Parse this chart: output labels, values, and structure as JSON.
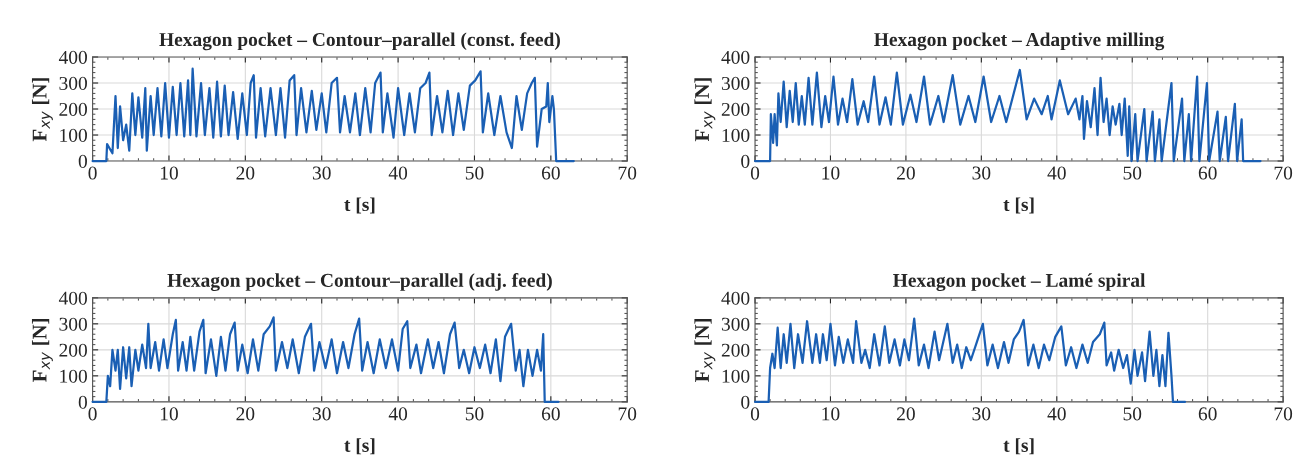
{
  "chart_data": [
    {
      "type": "line",
      "title": "Hexagon pocket – Contour–parallel (const. feed)",
      "xlabel": "t [s]",
      "ylabel": "F$_{xy}$ [N]",
      "xlim": [
        0,
        70
      ],
      "xticks": [
        0,
        10,
        20,
        30,
        40,
        50,
        60,
        70
      ],
      "ylim": [
        0,
        400
      ],
      "yticks": [
        0,
        100,
        200,
        300,
        400
      ],
      "grid": true,
      "legend": false,
      "series": [
        {
          "color": "#1a5fb4",
          "x": [
            0,
            1.8,
            1.9,
            2.6,
            3.0,
            3.3,
            3.6,
            4.0,
            4.4,
            4.8,
            5.2,
            5.6,
            6.0,
            6.5,
            6.9,
            7.1,
            7.6,
            8.0,
            8.5,
            9.0,
            9.5,
            10.0,
            10.5,
            11.0,
            11.5,
            12.0,
            12.5,
            12.8,
            13.1,
            13.6,
            14.2,
            14.7,
            15.3,
            15.8,
            16.3,
            16.8,
            17.3,
            17.8,
            18.4,
            19.0,
            19.6,
            20.2,
            20.7,
            21.1,
            21.4,
            22.0,
            22.6,
            23.3,
            24.0,
            24.6,
            25.2,
            25.8,
            26.4,
            26.7,
            27.3,
            28.0,
            28.7,
            29.3,
            30.0,
            30.6,
            31.3,
            32.0,
            32.4,
            33.0,
            33.7,
            34.4,
            35.0,
            35.7,
            36.4,
            37.0,
            37.7,
            38.0,
            38.6,
            39.4,
            40.0,
            40.8,
            41.5,
            42.2,
            42.9,
            43.6,
            44.1,
            44.4,
            45.1,
            45.8,
            46.5,
            47.2,
            47.9,
            48.6,
            49.4,
            50.1,
            50.8,
            51.1,
            51.8,
            52.6,
            53.4,
            54.2,
            54.9,
            55.5,
            56.2,
            56.9,
            57.5,
            57.9,
            58.2,
            58.8,
            59.4,
            59.6,
            59.8,
            60.2,
            60.4,
            60.7,
            63
          ],
          "values": [
            0,
            0,
            65,
            30,
            250,
            50,
            210,
            80,
            140,
            40,
            260,
            100,
            245,
            90,
            280,
            40,
            250,
            100,
            280,
            95,
            300,
            90,
            285,
            100,
            300,
            95,
            310,
            100,
            355,
            95,
            300,
            100,
            280,
            90,
            305,
            95,
            290,
            100,
            265,
            85,
            260,
            100,
            300,
            330,
            90,
            280,
            95,
            280,
            100,
            280,
            90,
            310,
            330,
            100,
            280,
            110,
            270,
            120,
            260,
            110,
            300,
            320,
            110,
            250,
            110,
            260,
            100,
            280,
            110,
            300,
            340,
            110,
            260,
            90,
            280,
            100,
            260,
            110,
            280,
            300,
            340,
            100,
            250,
            110,
            270,
            100,
            260,
            120,
            290,
            310,
            345,
            110,
            260,
            100,
            250,
            110,
            50,
            250,
            120,
            260,
            300,
            320,
            55,
            200,
            210,
            300,
            150,
            250,
            200,
            0,
            0
          ]
        }
      ]
    },
    {
      "type": "line",
      "title": "Hexagon pocket – Adaptive milling",
      "xlabel": "t [s]",
      "ylabel": "F$_{xy}$ [N]",
      "xlim": [
        0,
        70
      ],
      "xticks": [
        0,
        10,
        20,
        30,
        40,
        50,
        60,
        70
      ],
      "ylim": [
        0,
        400
      ],
      "yticks": [
        0,
        100,
        200,
        300,
        400
      ],
      "grid": true,
      "legend": false,
      "series": [
        {
          "color": "#1a5fb4",
          "x": [
            0,
            2,
            2.1,
            2.4,
            2.6,
            2.9,
            3.1,
            3.4,
            3.8,
            4.2,
            4.6,
            5.0,
            5.4,
            5.8,
            6.2,
            6.6,
            7.1,
            7.6,
            8.2,
            8.8,
            9.3,
            9.8,
            10.4,
            11.0,
            11.6,
            12.2,
            12.9,
            13.6,
            14.4,
            15.0,
            15.8,
            16.5,
            17.3,
            18.0,
            18.8,
            19.6,
            20.6,
            21.4,
            22.4,
            23.2,
            24.3,
            25.0,
            26.2,
            27.2,
            28.3,
            29.2,
            30.3,
            31.3,
            32.4,
            33.3,
            35.1,
            36.0,
            37.0,
            38.0,
            38.8,
            39.3,
            40.4,
            41.5,
            42.5,
            43.0,
            43.4,
            43.6,
            44.0,
            44.5,
            45.0,
            45.4,
            45.8,
            46.2,
            46.6,
            47.0,
            47.4,
            47.8,
            48.3,
            48.6,
            49.0,
            49.4,
            49.6,
            49.9,
            50.4,
            50.7,
            51.6,
            51.9,
            52.7,
            53.0,
            53.6,
            53.9,
            55.2,
            55.5,
            56.6,
            56.9,
            57.5,
            57.8,
            58.6,
            58.9,
            59.9,
            60.2,
            61.3,
            61.6,
            62.4,
            62.7,
            63.6,
            63.9,
            64.5,
            64.7,
            67
          ],
          "values": [
            0,
            0,
            180,
            70,
            180,
            60,
            260,
            150,
            305,
            130,
            270,
            150,
            300,
            140,
            250,
            140,
            320,
            140,
            340,
            130,
            250,
            150,
            325,
            140,
            240,
            150,
            315,
            140,
            230,
            150,
            325,
            140,
            245,
            140,
            340,
            140,
            255,
            150,
            325,
            140,
            250,
            150,
            330,
            140,
            250,
            150,
            325,
            150,
            250,
            150,
            350,
            160,
            240,
            180,
            250,
            160,
            310,
            180,
            240,
            160,
            250,
            85,
            230,
            130,
            280,
            100,
            320,
            150,
            240,
            100,
            210,
            140,
            220,
            100,
            240,
            20,
            210,
            0,
            180,
            0,
            200,
            0,
            190,
            0,
            160,
            0,
            300,
            0,
            240,
            0,
            180,
            0,
            325,
            0,
            300,
            0,
            190,
            0,
            170,
            0,
            220,
            0,
            160,
            0,
            0
          ]
        }
      ]
    },
    {
      "type": "line",
      "title": "Hexagon pocket – Contour–parallel (adj. feed)",
      "xlabel": "t [s]",
      "ylabel": "F$_{xy}$ [N]",
      "xlim": [
        0,
        70
      ],
      "xticks": [
        0,
        10,
        20,
        30,
        40,
        50,
        60,
        70
      ],
      "ylim": [
        0,
        400
      ],
      "yticks": [
        0,
        100,
        200,
        300,
        400
      ],
      "grid": true,
      "legend": false,
      "series": [
        {
          "color": "#1a5fb4",
          "x": [
            0,
            1.8,
            2.0,
            2.3,
            2.6,
            3.0,
            3.3,
            3.6,
            4.0,
            4.4,
            4.8,
            5.1,
            5.6,
            6.0,
            6.5,
            7.0,
            7.3,
            7.6,
            8.2,
            8.7,
            9.3,
            9.8,
            10.5,
            10.9,
            11.2,
            11.8,
            12.3,
            12.8,
            13.3,
            14.0,
            14.5,
            14.8,
            15.5,
            16.2,
            16.8,
            17.4,
            18.0,
            18.6,
            19.0,
            19.6,
            20.3,
            21.0,
            21.7,
            22.4,
            23.2,
            23.7,
            24.0,
            24.8,
            25.5,
            26.2,
            27.0,
            27.8,
            28.6,
            29.0,
            29.7,
            30.5,
            31.3,
            32.0,
            32.8,
            33.5,
            34.3,
            34.9,
            35.3,
            36.0,
            36.8,
            37.6,
            38.4,
            39.2,
            40.0,
            40.6,
            41.2,
            41.6,
            42.4,
            43.0,
            43.9,
            44.6,
            45.3,
            46.0,
            46.8,
            47.4,
            48.0,
            48.6,
            49.3,
            50.0,
            50.7,
            51.4,
            52.1,
            52.8,
            53.4,
            54.0,
            54.8,
            55.4,
            55.9,
            56.4,
            57.0,
            57.6,
            58.2,
            58.7,
            59.0,
            59.2,
            61
          ],
          "values": [
            0,
            0,
            100,
            60,
            200,
            120,
            200,
            50,
            210,
            90,
            210,
            60,
            200,
            120,
            220,
            130,
            300,
            130,
            230,
            120,
            240,
            130,
            260,
            315,
            120,
            230,
            120,
            250,
            120,
            270,
            315,
            110,
            240,
            100,
            250,
            120,
            260,
            305,
            120,
            220,
            110,
            240,
            120,
            260,
            290,
            325,
            120,
            230,
            130,
            240,
            110,
            250,
            300,
            120,
            230,
            130,
            240,
            110,
            230,
            130,
            260,
            320,
            120,
            230,
            110,
            240,
            130,
            240,
            120,
            280,
            310,
            130,
            220,
            110,
            240,
            130,
            230,
            110,
            260,
            305,
            130,
            200,
            110,
            210,
            130,
            220,
            110,
            240,
            80,
            250,
            300,
            120,
            200,
            60,
            200,
            100,
            200,
            120,
            260,
            0,
            0
          ]
        }
      ]
    },
    {
      "type": "line",
      "title": "Hexagon pocket – Lamé spiral",
      "xlabel": "t [s]",
      "ylabel": "F$_{xy}$ [N]",
      "xlim": [
        0,
        70
      ],
      "xticks": [
        0,
        10,
        20,
        30,
        40,
        50,
        60,
        70
      ],
      "ylim": [
        0,
        400
      ],
      "yticks": [
        0,
        100,
        200,
        300,
        400
      ],
      "grid": true,
      "legend": false,
      "series": [
        {
          "color": "#1a5fb4",
          "x": [
            0,
            1.8,
            2.0,
            2.3,
            2.6,
            3.0,
            3.4,
            3.8,
            4.2,
            4.7,
            5.2,
            5.7,
            6.3,
            6.9,
            7.6,
            8.1,
            8.6,
            9.0,
            9.5,
            10.0,
            10.6,
            11.1,
            11.7,
            12.3,
            13.0,
            13.4,
            14.1,
            14.6,
            15.2,
            15.8,
            16.5,
            17.2,
            17.8,
            18.5,
            19.2,
            19.8,
            20.4,
            21.1,
            21.7,
            22.4,
            23.0,
            23.8,
            24.4,
            25.5,
            26.2,
            26.8,
            27.4,
            28.0,
            28.6,
            29.4,
            30.2,
            30.8,
            31.5,
            32.2,
            33.0,
            33.6,
            34.3,
            35.0,
            35.6,
            36.2,
            36.9,
            37.6,
            38.3,
            39.0,
            39.8,
            40.6,
            41.2,
            41.9,
            42.6,
            43.4,
            44.1,
            44.8,
            45.7,
            46.3,
            46.6,
            47.2,
            47.6,
            48.2,
            48.8,
            49.3,
            49.8,
            50.3,
            50.7,
            51.3,
            51.7,
            52.3,
            52.8,
            53.2,
            53.6,
            54.0,
            54.4,
            54.8,
            55.2,
            55.4,
            57
          ],
          "values": [
            0,
            0,
            130,
            185,
            130,
            285,
            130,
            260,
            150,
            300,
            130,
            260,
            150,
            310,
            150,
            260,
            150,
            260,
            160,
            300,
            140,
            250,
            150,
            240,
            150,
            310,
            150,
            200,
            130,
            260,
            140,
            290,
            150,
            240,
            140,
            240,
            160,
            320,
            140,
            220,
            130,
            270,
            160,
            300,
            150,
            220,
            130,
            210,
            160,
            230,
            300,
            140,
            220,
            130,
            230,
            150,
            240,
            270,
            315,
            140,
            220,
            130,
            220,
            160,
            250,
            290,
            140,
            210,
            130,
            220,
            150,
            230,
            260,
            305,
            140,
            190,
            120,
            200,
            130,
            180,
            70,
            200,
            100,
            190,
            80,
            270,
            100,
            200,
            60,
            180,
            60,
            265,
            100,
            0,
            0
          ]
        }
      ]
    }
  ]
}
